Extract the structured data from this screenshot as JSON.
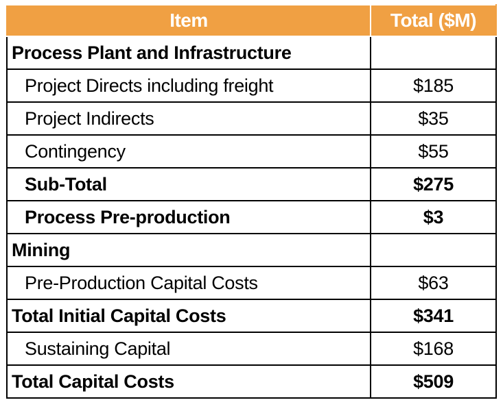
{
  "table": {
    "headers": {
      "item": "Item",
      "total": "Total ($M)"
    },
    "header_color": "#f0a043",
    "rows": [
      {
        "item": "Process Plant and Infrastructure",
        "total": "",
        "bold": true,
        "indent": false
      },
      {
        "item": "Project Directs including freight",
        "total": "$185",
        "bold": false,
        "indent": true
      },
      {
        "item": "Project Indirects",
        "total": "$35",
        "bold": false,
        "indent": true
      },
      {
        "item": "Contingency",
        "total": "$55",
        "bold": false,
        "indent": true
      },
      {
        "item": "Sub-Total",
        "total": "$275",
        "bold": true,
        "indent": true
      },
      {
        "item": "Process Pre-production",
        "total": "$3",
        "bold": true,
        "indent": true
      },
      {
        "item": "Mining",
        "total": "",
        "bold": true,
        "indent": false
      },
      {
        "item": "Pre-Production Capital Costs",
        "total": "$63",
        "bold": false,
        "indent": true
      },
      {
        "item": "Total Initial Capital Costs",
        "total": "$341",
        "bold": true,
        "indent": false
      },
      {
        "item": "Sustaining Capital",
        "total": "$168",
        "bold": false,
        "indent": true
      },
      {
        "item": "Total Capital Costs",
        "total": "$509",
        "bold": true,
        "indent": false
      }
    ]
  }
}
